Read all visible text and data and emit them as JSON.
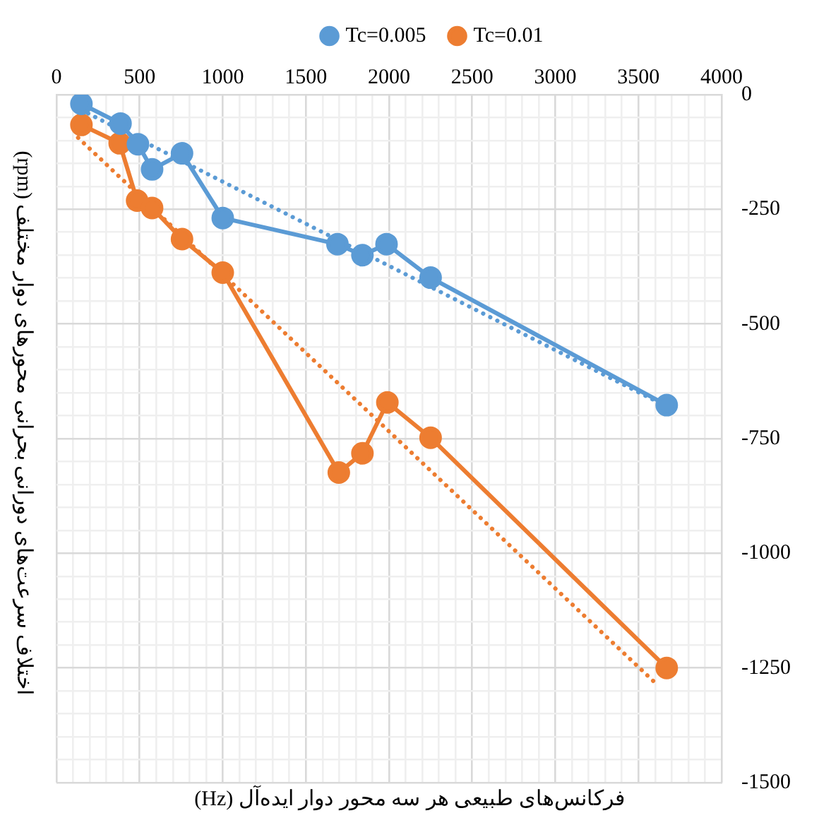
{
  "chart_data": {
    "type": "line",
    "xlabel": "فرکانس‌های طبیعی هر سه محور دوار ایده‌آل (Hz)",
    "ylabel": "اختلاف سرعت‌های دورانی بحرانی محورهای دوار مختلف (rpm)",
    "series": [
      {
        "name": "Tc=0.005",
        "color": "#5b9bd5",
        "marker": "circle",
        "line_style": "solid",
        "x": [
          150,
          385,
          490,
          575,
          755,
          1000,
          1690,
          1840,
          1985,
          2250,
          3670
        ],
        "values": [
          -20,
          -63,
          -108,
          -163,
          -128,
          -269,
          -326,
          -350,
          -326,
          -399,
          -677
        ]
      },
      {
        "name": "Tc=0.01",
        "color": "#ed7d31",
        "marker": "circle",
        "line_style": "solid",
        "x": [
          150,
          380,
          485,
          575,
          755,
          1000,
          1698,
          1840,
          1990,
          2250,
          3670
        ],
        "values": [
          -66,
          -106,
          -231,
          -247,
          -315,
          -388,
          -824,
          -782,
          -671,
          -748,
          -1250
        ]
      },
      {
        "color": "#5b9bd5",
        "marker": "none",
        "line_style": "dotted",
        "x": [
          190,
          3670
        ],
        "values": [
          -41,
          -680
        ]
      },
      {
        "color": "#ed7d31",
        "marker": "none",
        "line_style": "dotted",
        "x": [
          130,
          3620
        ],
        "values": [
          -94,
          -1289
        ]
      }
    ],
    "xlim": [
      0,
      4000
    ],
    "ylim": [
      -1500,
      0
    ],
    "xticks": [
      0,
      {
        "value": 100,
        "label": null
      },
      {
        "value": 200,
        "label": null
      },
      {
        "value": 300,
        "label": null
      },
      {
        "value": 400,
        "label": null
      },
      500,
      {
        "value": 600,
        "label": null
      },
      {
        "value": 700,
        "label": null
      },
      {
        "value": 800,
        "label": null
      },
      {
        "value": 900,
        "label": null
      },
      1000,
      {
        "value": 1100,
        "label": null
      },
      {
        "value": 1200,
        "label": null
      },
      {
        "value": 1300,
        "label": null
      },
      {
        "value": 1400,
        "label": null
      },
      1500,
      {
        "value": 1600,
        "label": null
      },
      {
        "value": 1700,
        "label": null
      },
      {
        "value": 1800,
        "label": null
      },
      {
        "value": 1900,
        "label": null
      },
      2000,
      {
        "value": 2100,
        "label": null
      },
      {
        "value": 2200,
        "label": null
      },
      {
        "value": 2300,
        "label": null
      },
      {
        "value": 2400,
        "label": null
      },
      2500,
      {
        "value": 2600,
        "label": null
      },
      {
        "value": 2700,
        "label": null
      },
      {
        "value": 2800,
        "label": null
      },
      {
        "value": 2900,
        "label": null
      },
      3000,
      {
        "value": 3100,
        "label": null
      },
      {
        "value": 3200,
        "label": null
      },
      {
        "value": 3300,
        "label": null
      },
      {
        "value": 3400,
        "label": null
      },
      3500,
      {
        "value": 3600,
        "label": null
      },
      {
        "value": 3700,
        "label": null
      },
      {
        "value": 3800,
        "label": null
      },
      {
        "value": 3900,
        "label": null
      },
      4000
    ],
    "yticks": [
      -1500,
      {
        "value": -1450,
        "label": null
      },
      {
        "value": -1400,
        "label": null
      },
      {
        "value": -1350,
        "label": null
      },
      {
        "value": -1300,
        "label": null
      },
      -1250,
      {
        "value": -1200,
        "label": null
      },
      {
        "value": -1150,
        "label": null
      },
      {
        "value": -1100,
        "label": null
      },
      {
        "value": -1050,
        "label": null
      },
      -1000,
      {
        "value": -950,
        "label": null
      },
      {
        "value": -900,
        "label": null
      },
      {
        "value": -850,
        "label": null
      },
      {
        "value": -800,
        "label": null
      },
      -750,
      {
        "value": -700,
        "label": null
      },
      {
        "value": -650,
        "label": null
      },
      {
        "value": -600,
        "label": null
      },
      {
        "value": -550,
        "label": null
      },
      -500,
      {
        "value": -450,
        "label": null
      },
      {
        "value": -400,
        "label": null
      },
      {
        "value": -350,
        "label": null
      },
      {
        "value": -300,
        "label": null
      },
      -250,
      {
        "value": -200,
        "label": null
      },
      {
        "value": -150,
        "label": null
      },
      {
        "value": -100,
        "label": null
      },
      {
        "value": -50,
        "label": null
      },
      0
    ],
    "grid": true,
    "legend": "top"
  }
}
